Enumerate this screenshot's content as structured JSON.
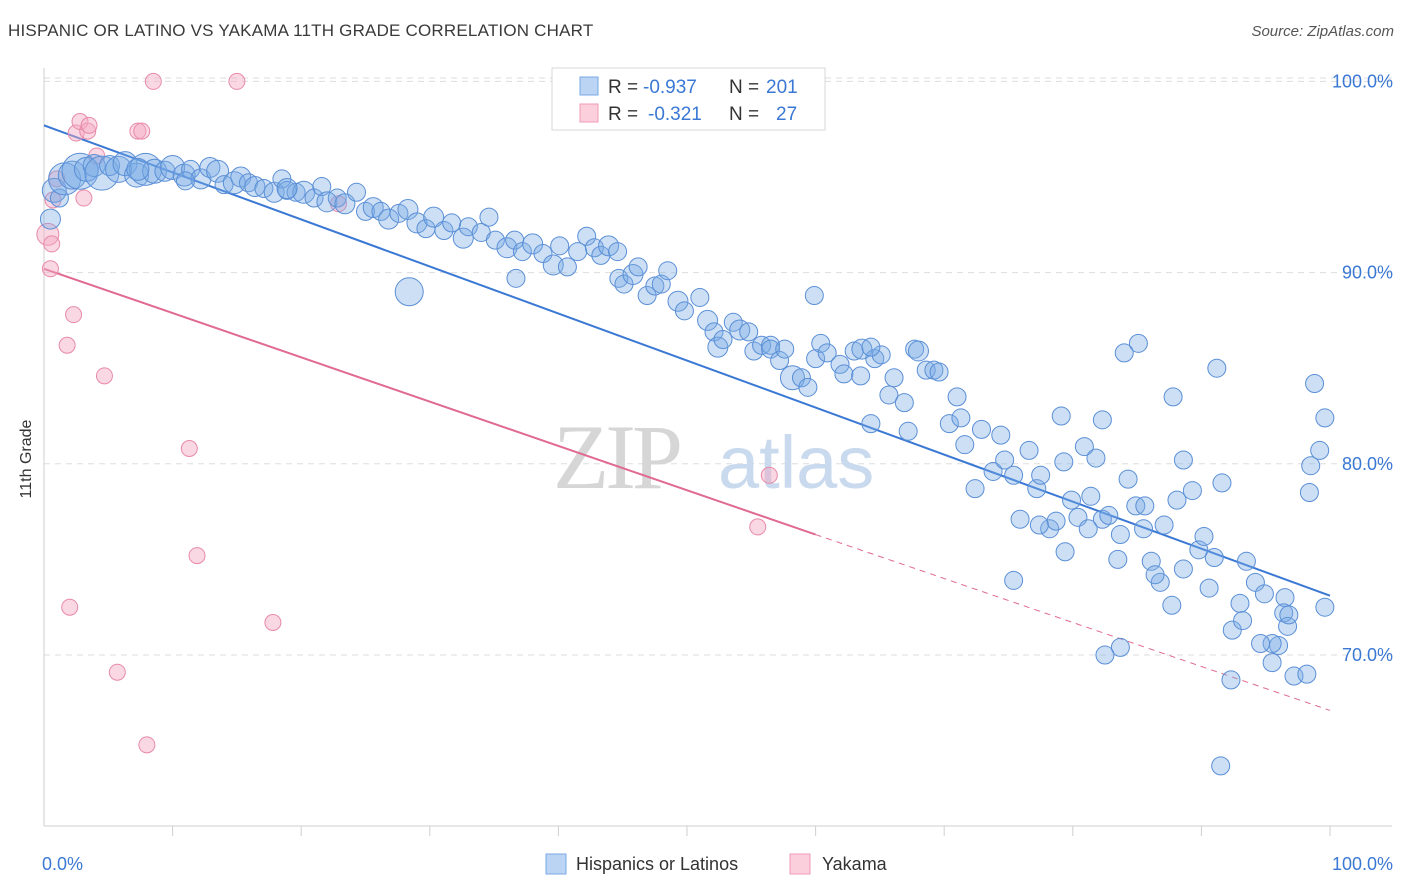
{
  "title": "HISPANIC OR LATINO VS YAKAMA 11TH GRADE CORRELATION CHART",
  "source": "Source: ZipAtlas.com",
  "watermark": {
    "zip": "ZIP",
    "atlas": "atlas"
  },
  "colors": {
    "blue": "#7aaae6",
    "blue_stroke": "#5b8fd6",
    "blue_line": "#3a78d4",
    "pink": "#f4a8c0",
    "pink_stroke": "#e88aa8",
    "pink_line": "#e06a92",
    "axis_label": "#3a78d4",
    "grid": "#dddddd"
  },
  "legend": {
    "rows": [
      {
        "r_label": "R =",
        "r_value": "-0.937",
        "n_label": "N =",
        "n_value": "201",
        "color": "blue"
      },
      {
        "r_label": "R =",
        "r_value": "-0.321",
        "n_label": "N =",
        "n_value": "27",
        "color": "pink"
      }
    ]
  },
  "bottom_legend": [
    {
      "label": "Hispanics or Latinos",
      "color": "blue"
    },
    {
      "label": "Yakama",
      "color": "pink"
    }
  ],
  "chart_data": {
    "type": "scatter",
    "title": "HISPANIC OR LATINO VS YAKAMA 11TH GRADE CORRELATION CHART",
    "xlabel": "",
    "ylabel": "11th Grade",
    "xlim": [
      0,
      100
    ],
    "ylim": [
      60,
      101.5
    ],
    "x_tick_labels": [
      {
        "value": 0,
        "label": "0.0%"
      },
      {
        "value": 100,
        "label": "100.0%"
      }
    ],
    "y_ticks": [
      {
        "value": 100,
        "label": "100.0%"
      },
      {
        "value": 90,
        "label": "90.0%"
      },
      {
        "value": 80,
        "label": "80.0%"
      },
      {
        "value": 70,
        "label": "70.0%"
      }
    ],
    "grid": true,
    "series": [
      {
        "name": "Hispanics or Latinos",
        "color": "blue",
        "trend": {
          "x": [
            0,
            100
          ],
          "y": [
            97.7,
            73.1
          ]
        },
        "points": [
          [
            0.5,
            92.8,
            10
          ],
          [
            0.8,
            94.3,
            12
          ],
          [
            1.2,
            93.9,
            9
          ],
          [
            1.6,
            94.9,
            16
          ],
          [
            2.2,
            95.1,
            14
          ],
          [
            2.8,
            95.3,
            18
          ],
          [
            3.3,
            95.4,
            12
          ],
          [
            3.9,
            95.6,
            11
          ],
          [
            4.5,
            95.2,
            17
          ],
          [
            5.1,
            95.6,
            10
          ],
          [
            5.8,
            95.4,
            13
          ],
          [
            6.3,
            95.7,
            12
          ],
          [
            7.2,
            95.1,
            12
          ],
          [
            7.9,
            95.4,
            16
          ],
          [
            8.6,
            95.3,
            12
          ],
          [
            9.4,
            95.3,
            10
          ],
          [
            10.0,
            95.5,
            12
          ],
          [
            10.9,
            95.1,
            11
          ],
          [
            11.4,
            95.4,
            9
          ],
          [
            12.2,
            94.9,
            10
          ],
          [
            12.9,
            95.5,
            10
          ],
          [
            13.5,
            95.3,
            11
          ],
          [
            14.0,
            94.6,
            9
          ],
          [
            14.8,
            94.7,
            11
          ],
          [
            15.3,
            95.0,
            10
          ],
          [
            15.9,
            94.7,
            9
          ],
          [
            16.4,
            94.5,
            10
          ],
          [
            17.1,
            94.4,
            9
          ],
          [
            17.9,
            94.2,
            10
          ],
          [
            18.5,
            94.9,
            9
          ],
          [
            18.9,
            94.3,
            9
          ],
          [
            19.6,
            94.2,
            9
          ],
          [
            20.2,
            94.2,
            11
          ],
          [
            21.0,
            93.9,
            9
          ],
          [
            21.6,
            94.5,
            9
          ],
          [
            22.0,
            93.7,
            10
          ],
          [
            22.8,
            93.9,
            9
          ],
          [
            23.4,
            93.6,
            10
          ],
          [
            24.3,
            94.2,
            9
          ],
          [
            25.0,
            93.2,
            9
          ],
          [
            25.6,
            93.4,
            10
          ],
          [
            26.2,
            93.2,
            9
          ],
          [
            26.8,
            92.8,
            10
          ],
          [
            27.6,
            93.1,
            9
          ],
          [
            28.3,
            93.3,
            10
          ],
          [
            29.0,
            92.6,
            10
          ],
          [
            29.7,
            92.3,
            9
          ],
          [
            30.3,
            92.9,
            10
          ],
          [
            31.1,
            92.2,
            9
          ],
          [
            31.7,
            92.6,
            9
          ],
          [
            32.6,
            91.8,
            10
          ],
          [
            33.0,
            92.4,
            9
          ],
          [
            34.0,
            92.1,
            9
          ],
          [
            34.6,
            92.9,
            9
          ],
          [
            35.1,
            91.7,
            9
          ],
          [
            36.0,
            91.3,
            10
          ],
          [
            36.6,
            91.7,
            9
          ],
          [
            37.2,
            91.1,
            9
          ],
          [
            38.0,
            91.5,
            10
          ],
          [
            38.8,
            91.0,
            9
          ],
          [
            39.6,
            90.4,
            10
          ],
          [
            40.1,
            91.4,
            9
          ],
          [
            40.7,
            90.3,
            9
          ],
          [
            41.5,
            91.1,
            9
          ],
          [
            42.2,
            91.9,
            9
          ],
          [
            42.8,
            91.3,
            9
          ],
          [
            43.3,
            90.9,
            9
          ],
          [
            43.9,
            91.4,
            10
          ],
          [
            44.6,
            91.1,
            9
          ],
          [
            44.7,
            89.7,
            9
          ],
          [
            45.1,
            89.4,
            9
          ],
          [
            45.8,
            89.9,
            10
          ],
          [
            46.2,
            90.3,
            9
          ],
          [
            46.9,
            88.8,
            9
          ],
          [
            47.5,
            89.3,
            9
          ],
          [
            48.0,
            89.4,
            9
          ],
          [
            48.5,
            90.1,
            9
          ],
          [
            49.3,
            88.5,
            10
          ],
          [
            49.8,
            88.0,
            9
          ],
          [
            51.0,
            88.7,
            9
          ],
          [
            51.6,
            87.5,
            10
          ],
          [
            52.1,
            86.9,
            9
          ],
          [
            52.4,
            86.1,
            10
          ],
          [
            52.8,
            86.5,
            9
          ],
          [
            53.6,
            87.4,
            9
          ],
          [
            54.1,
            87.0,
            10
          ],
          [
            54.8,
            86.9,
            9
          ],
          [
            55.2,
            85.9,
            9
          ],
          [
            55.8,
            86.2,
            9
          ],
          [
            56.5,
            86.2,
            9
          ],
          [
            56.5,
            86.0,
            9
          ],
          [
            57.2,
            85.4,
            9
          ],
          [
            57.6,
            86.0,
            9
          ],
          [
            58.2,
            84.5,
            12
          ],
          [
            58.9,
            84.5,
            9
          ],
          [
            59.4,
            84.0,
            9
          ],
          [
            60.0,
            85.5,
            9
          ],
          [
            60.4,
            86.3,
            9
          ],
          [
            60.9,
            85.8,
            9
          ],
          [
            61.9,
            85.2,
            9
          ],
          [
            62.2,
            84.7,
            9
          ],
          [
            63.0,
            85.9,
            9
          ],
          [
            63.5,
            84.6,
            9
          ],
          [
            63.6,
            86.0,
            10
          ],
          [
            64.3,
            82.1,
            9
          ],
          [
            64.6,
            85.5,
            9
          ],
          [
            65.1,
            85.7,
            9
          ],
          [
            65.7,
            83.6,
            9
          ],
          [
            66.1,
            84.5,
            9
          ],
          [
            66.9,
            83.2,
            9
          ],
          [
            67.2,
            81.7,
            9
          ],
          [
            67.7,
            86.0,
            9
          ],
          [
            68.0,
            85.9,
            10
          ],
          [
            68.6,
            84.9,
            9
          ],
          [
            69.2,
            84.9,
            9
          ],
          [
            69.6,
            84.8,
            9
          ],
          [
            70.4,
            82.1,
            9
          ],
          [
            71.0,
            83.5,
            9
          ],
          [
            71.3,
            82.4,
            9
          ],
          [
            71.6,
            81.0,
            9
          ],
          [
            72.4,
            78.7,
            9
          ],
          [
            72.9,
            81.8,
            9
          ],
          [
            73.8,
            79.6,
            9
          ],
          [
            74.4,
            81.5,
            9
          ],
          [
            74.7,
            80.2,
            9
          ],
          [
            75.4,
            79.4,
            9
          ],
          [
            75.9,
            77.1,
            9
          ],
          [
            76.6,
            80.7,
            9
          ],
          [
            77.2,
            78.7,
            9
          ],
          [
            77.5,
            79.4,
            9
          ],
          [
            78.2,
            76.6,
            9
          ],
          [
            78.7,
            77.0,
            9
          ],
          [
            79.3,
            80.1,
            9
          ],
          [
            79.9,
            78.1,
            9
          ],
          [
            80.4,
            77.2,
            9
          ],
          [
            80.9,
            80.9,
            9
          ],
          [
            81.4,
            78.3,
            9
          ],
          [
            81.8,
            80.3,
            9
          ],
          [
            82.3,
            77.1,
            9
          ],
          [
            82.8,
            77.3,
            9
          ],
          [
            83.5,
            75.0,
            9
          ],
          [
            83.7,
            76.3,
            9
          ],
          [
            84.3,
            79.2,
            9
          ],
          [
            84.9,
            77.8,
            9
          ],
          [
            85.5,
            76.6,
            9
          ],
          [
            86.1,
            74.9,
            9
          ],
          [
            86.8,
            73.8,
            9
          ],
          [
            87.1,
            76.8,
            9
          ],
          [
            87.7,
            72.6,
            9
          ],
          [
            88.1,
            78.1,
            9
          ],
          [
            88.6,
            80.2,
            9
          ],
          [
            89.3,
            78.6,
            9
          ],
          [
            89.8,
            75.5,
            9
          ],
          [
            90.2,
            76.2,
            9
          ],
          [
            91.0,
            75.1,
            9
          ],
          [
            91.6,
            79.0,
            9
          ],
          [
            92.4,
            71.3,
            9
          ],
          [
            93.0,
            72.7,
            9
          ],
          [
            93.5,
            74.9,
            9
          ],
          [
            94.2,
            73.8,
            9
          ],
          [
            94.9,
            73.2,
            9
          ],
          [
            95.5,
            69.6,
            9
          ],
          [
            96.0,
            70.5,
            9
          ],
          [
            96.5,
            73.0,
            9
          ],
          [
            97.2,
            68.9,
            9
          ],
          [
            98.4,
            78.5,
            9
          ],
          [
            99.2,
            80.7,
            9
          ],
          [
            85.1,
            86.3,
            9
          ],
          [
            91.2,
            85.0,
            9
          ],
          [
            98.8,
            84.2,
            9
          ],
          [
            99.6,
            82.4,
            9
          ],
          [
            87.8,
            83.5,
            9
          ],
          [
            84.0,
            85.8,
            9
          ],
          [
            95.5,
            70.6,
            9
          ],
          [
            96.4,
            72.2,
            9
          ],
          [
            98.2,
            69.0,
            9
          ],
          [
            99.6,
            72.5,
            9
          ],
          [
            92.3,
            68.7,
            9
          ],
          [
            88.6,
            74.5,
            9
          ],
          [
            90.6,
            73.5,
            9
          ],
          [
            85.6,
            77.8,
            9
          ],
          [
            79.1,
            82.5,
            9
          ],
          [
            82.3,
            82.3,
            9
          ],
          [
            64.3,
            86.1,
            9
          ],
          [
            59.9,
            88.8,
            9
          ],
          [
            28.4,
            89.0,
            14
          ],
          [
            36.7,
            89.7,
            9
          ],
          [
            18.9,
            94.4,
            10
          ],
          [
            11.0,
            94.8,
            9
          ],
          [
            7.3,
            95.4,
            11
          ],
          [
            91.5,
            64.2,
            9
          ],
          [
            79.4,
            75.4,
            9
          ],
          [
            83.7,
            70.4,
            9
          ],
          [
            86.4,
            74.2,
            9
          ],
          [
            94.6,
            70.6,
            9
          ],
          [
            96.7,
            71.5,
            9
          ],
          [
            77.4,
            76.8,
            9
          ],
          [
            98.5,
            79.9,
            9
          ],
          [
            93.2,
            71.8,
            9
          ],
          [
            96.8,
            72.1,
            9
          ],
          [
            75.4,
            73.9,
            9
          ],
          [
            81.2,
            76.6,
            9
          ],
          [
            82.5,
            70.0,
            9
          ]
        ]
      },
      {
        "name": "Yakama",
        "color": "pink",
        "trend": {
          "x": [
            0,
            60
          ],
          "y": [
            90.2,
            76.3
          ]
        },
        "trend_dashed": {
          "x": [
            60,
            100
          ],
          "y": [
            76.3,
            67.1
          ]
        },
        "points": [
          [
            0.3,
            92.0,
            11
          ],
          [
            0.5,
            90.2,
            8
          ],
          [
            0.6,
            91.5,
            8
          ],
          [
            0.7,
            93.8,
            8
          ],
          [
            1.0,
            94.9,
            8
          ],
          [
            1.8,
            86.2,
            8
          ],
          [
            2.0,
            72.5,
            8
          ],
          [
            2.3,
            87.8,
            8
          ],
          [
            2.5,
            97.3,
            8
          ],
          [
            2.8,
            97.9,
            8
          ],
          [
            3.1,
            93.9,
            8
          ],
          [
            3.4,
            97.4,
            8
          ],
          [
            3.5,
            97.7,
            8
          ],
          [
            4.1,
            96.1,
            8
          ],
          [
            4.7,
            84.6,
            8
          ],
          [
            5.7,
            69.1,
            8
          ],
          [
            7.3,
            97.4,
            8
          ],
          [
            7.6,
            97.4,
            8
          ],
          [
            8.0,
            65.3,
            8
          ],
          [
            8.5,
            100.0,
            8
          ],
          [
            11.3,
            80.8,
            8
          ],
          [
            11.9,
            75.2,
            8
          ],
          [
            15.0,
            100.0,
            8
          ],
          [
            17.8,
            71.7,
            8
          ],
          [
            22.9,
            93.6,
            8
          ],
          [
            55.5,
            76.7,
            8
          ],
          [
            56.4,
            79.4,
            8
          ]
        ]
      }
    ]
  }
}
